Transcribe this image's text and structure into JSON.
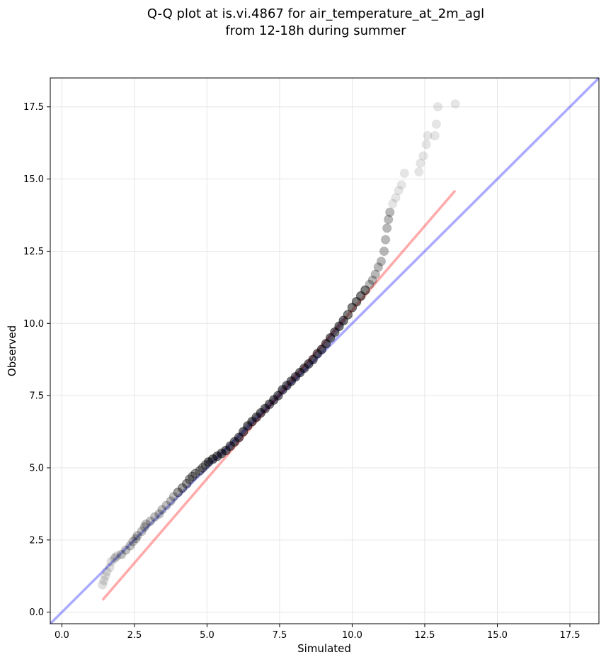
{
  "chart_data": {
    "type": "scatter",
    "title_lines": [
      "Q-Q plot at is.vi.4867 for air_temperature_at_2m_agl",
      "from 12-18h during summer"
    ],
    "xlabel": "Simulated",
    "ylabel": "Observed",
    "xlim": [
      -0.4,
      18.5
    ],
    "ylim": [
      -0.4,
      18.5
    ],
    "xticks": [
      0.0,
      2.5,
      5.0,
      7.5,
      10.0,
      12.5,
      15.0,
      17.5
    ],
    "yticks": [
      0.0,
      2.5,
      5.0,
      7.5,
      10.0,
      12.5,
      15.0,
      17.5
    ],
    "xtick_labels": [
      "0.0",
      "2.5",
      "5.0",
      "7.5",
      "10.0",
      "12.5",
      "15.0",
      "17.5"
    ],
    "ytick_labels": [
      "0.0",
      "2.5",
      "5.0",
      "7.5",
      "10.0",
      "12.5",
      "15.0",
      "17.5"
    ],
    "grid": true,
    "colors": {
      "points": "#000000",
      "identity_line": "#0000ff",
      "fit_line": "#ff0000",
      "core_overlay": "#1a0a6e"
    },
    "identity_line": {
      "x": [
        -0.4,
        18.5
      ],
      "y": [
        -0.4,
        18.5
      ]
    },
    "fit_line": {
      "x": [
        1.4,
        13.55
      ],
      "y": [
        0.42,
        14.6
      ]
    },
    "points": {
      "x": [
        1.4,
        1.45,
        1.5,
        1.55,
        1.65,
        1.7,
        1.8,
        1.85,
        1.9,
        2.05,
        2.2,
        2.35,
        2.45,
        2.55,
        2.6,
        2.75,
        2.85,
        2.9,
        3.05,
        3.2,
        3.35,
        3.45,
        3.6,
        3.75,
        3.85,
        4.0,
        4.15,
        4.3,
        4.4,
        4.5,
        4.6,
        4.75,
        4.85,
        4.95,
        5.05,
        5.2,
        5.35,
        5.5,
        5.65,
        5.8,
        5.95,
        6.1,
        6.25,
        6.4,
        6.55,
        6.7,
        6.85,
        7.0,
        7.15,
        7.3,
        7.45,
        7.6,
        7.75,
        7.9,
        8.05,
        8.2,
        8.35,
        8.5,
        8.65,
        8.8,
        8.95,
        9.1,
        9.25,
        9.4,
        9.55,
        9.7,
        9.85,
        10.0,
        10.15,
        10.3,
        10.45,
        10.6,
        10.7,
        10.8,
        10.9,
        11.0,
        11.1,
        11.15,
        11.2,
        11.25,
        11.3,
        11.4,
        11.5,
        11.6,
        11.7,
        11.8,
        12.3,
        12.35,
        12.45,
        12.55,
        12.6,
        12.85,
        12.9,
        12.95,
        13.55
      ],
      "y": [
        0.95,
        1.1,
        1.25,
        1.4,
        1.55,
        1.75,
        1.85,
        1.9,
        1.95,
        2.0,
        2.15,
        2.3,
        2.45,
        2.55,
        2.65,
        2.8,
        2.95,
        3.05,
        3.15,
        3.3,
        3.4,
        3.55,
        3.7,
        3.85,
        4.0,
        4.15,
        4.3,
        4.45,
        4.6,
        4.7,
        4.8,
        4.9,
        5.0,
        5.1,
        5.2,
        5.3,
        5.4,
        5.5,
        5.6,
        5.75,
        5.9,
        6.05,
        6.25,
        6.45,
        6.6,
        6.75,
        6.9,
        7.05,
        7.2,
        7.35,
        7.5,
        7.7,
        7.85,
        8.0,
        8.15,
        8.3,
        8.45,
        8.6,
        8.75,
        8.95,
        9.1,
        9.3,
        9.5,
        9.7,
        9.9,
        10.1,
        10.3,
        10.55,
        10.75,
        10.95,
        11.15,
        11.35,
        11.5,
        11.7,
        11.95,
        12.15,
        12.5,
        12.9,
        13.3,
        13.6,
        13.85,
        14.15,
        14.35,
        14.6,
        14.8,
        15.2,
        15.25,
        15.55,
        15.8,
        16.2,
        16.5,
        16.5,
        16.9,
        17.5,
        17.6
      ]
    }
  }
}
